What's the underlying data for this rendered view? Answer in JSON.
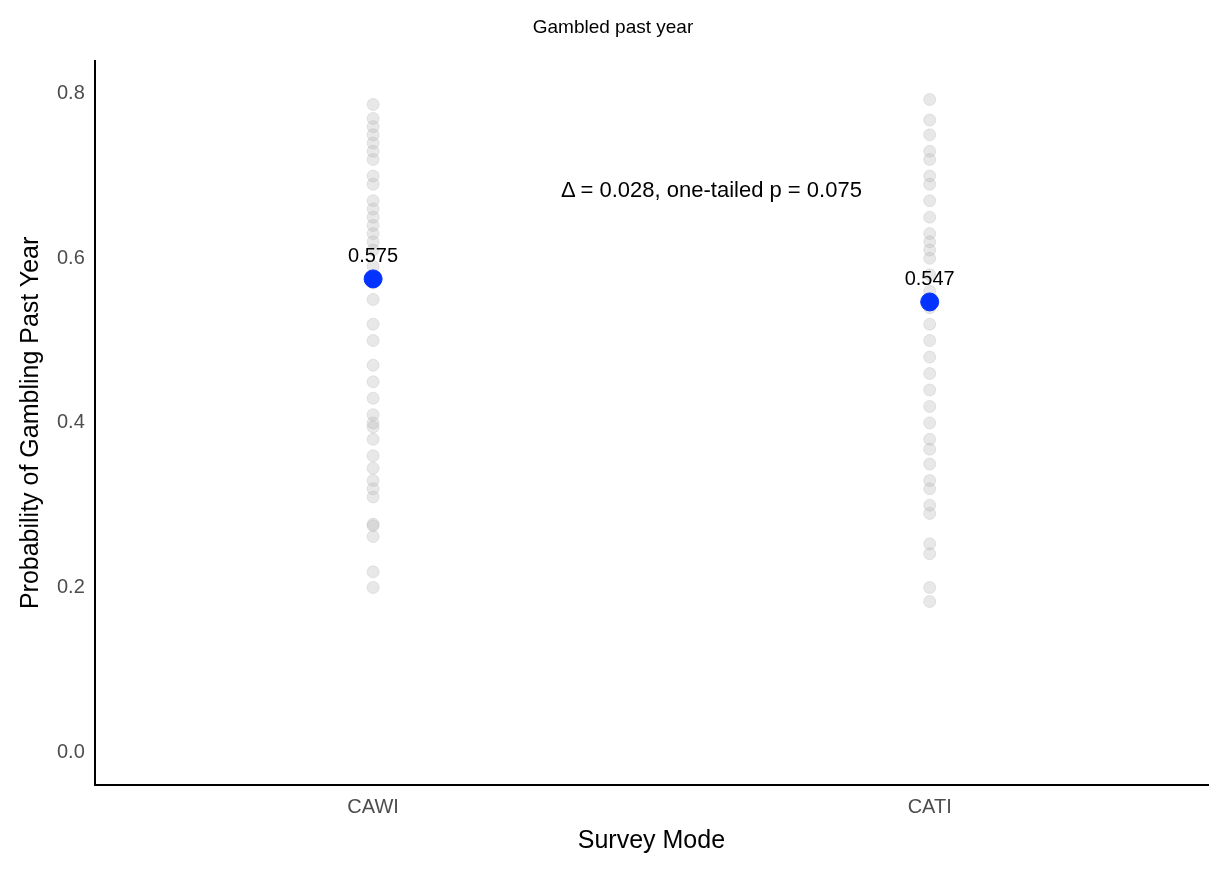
{
  "chart_data": {
    "type": "scatter",
    "title": "Gambled past year",
    "xlabel": "Survey Mode",
    "ylabel": "Probability of Gambling Past Year",
    "categories": [
      "CAWI",
      "CATI"
    ],
    "series": [
      {
        "type": "scatter",
        "color": "#b3b3b3",
        "x": [
          "CAWI",
          "CAWI",
          "CAWI",
          "CAWI",
          "CAWI",
          "CAWI",
          "CAWI",
          "CAWI",
          "CAWI",
          "CAWI",
          "CAWI",
          "CAWI",
          "CAWI",
          "CAWI",
          "CAWI",
          "CAWI",
          "CAWI",
          "CAWI",
          "CAWI",
          "CAWI",
          "CAWI",
          "CAWI",
          "CAWI",
          "CAWI",
          "CAWI",
          "CAWI",
          "CAWI",
          "CAWI",
          "CAWI",
          "CAWI",
          "CAWI",
          "CAWI",
          "CAWI",
          "CAWI",
          "CAWI",
          "CAWI",
          "CAWI",
          "CAWI",
          "CATI",
          "CATI",
          "CATI",
          "CATI",
          "CATI",
          "CATI",
          "CATI",
          "CATI",
          "CATI",
          "CATI",
          "CATI",
          "CATI",
          "CATI",
          "CATI",
          "CATI",
          "CATI",
          "CATI",
          "CATI",
          "CATI",
          "CATI",
          "CATI",
          "CATI",
          "CATI",
          "CATI",
          "CATI",
          "CATI",
          "CATI",
          "CATI",
          "CATI",
          "CATI",
          "CATI",
          "CATI",
          "CATI",
          "CATI"
        ],
        "values": [
          0.2,
          0.219,
          0.262,
          0.275,
          0.277,
          0.31,
          0.32,
          0.33,
          0.345,
          0.36,
          0.38,
          0.395,
          0.4,
          0.41,
          0.43,
          0.45,
          0.47,
          0.5,
          0.52,
          0.55,
          0.57,
          0.59,
          0.61,
          0.62,
          0.63,
          0.64,
          0.65,
          0.66,
          0.67,
          0.69,
          0.7,
          0.72,
          0.73,
          0.74,
          0.75,
          0.76,
          0.77,
          0.787,
          0.183,
          0.2,
          0.241,
          0.253,
          0.29,
          0.3,
          0.32,
          0.33,
          0.35,
          0.368,
          0.38,
          0.4,
          0.42,
          0.44,
          0.46,
          0.48,
          0.5,
          0.52,
          0.54,
          0.56,
          0.58,
          0.6,
          0.61,
          0.62,
          0.63,
          0.65,
          0.67,
          0.69,
          0.7,
          0.72,
          0.73,
          0.75,
          0.768,
          0.793
        ]
      },
      {
        "type": "scatter",
        "color": "#0433ff",
        "x": [
          "CAWI",
          "CATI"
        ],
        "values": [
          0.575,
          0.547
        ],
        "value_labels": [
          "0.575",
          "0.547"
        ]
      }
    ],
    "ylim": [
      -0.04,
      0.84
    ],
    "yticks": [
      {
        "value": 0,
        "label": "0.0"
      },
      {
        "value": 0.2,
        "label": "0.2"
      },
      {
        "value": 0.4,
        "label": "0.4"
      },
      {
        "value": 0.6,
        "label": "0.6"
      },
      {
        "value": 0.8,
        "label": "0.8"
      }
    ],
    "marker": "circle",
    "annotations": [
      "Δ = 0.028, one-tailed p = 0.075"
    ]
  }
}
